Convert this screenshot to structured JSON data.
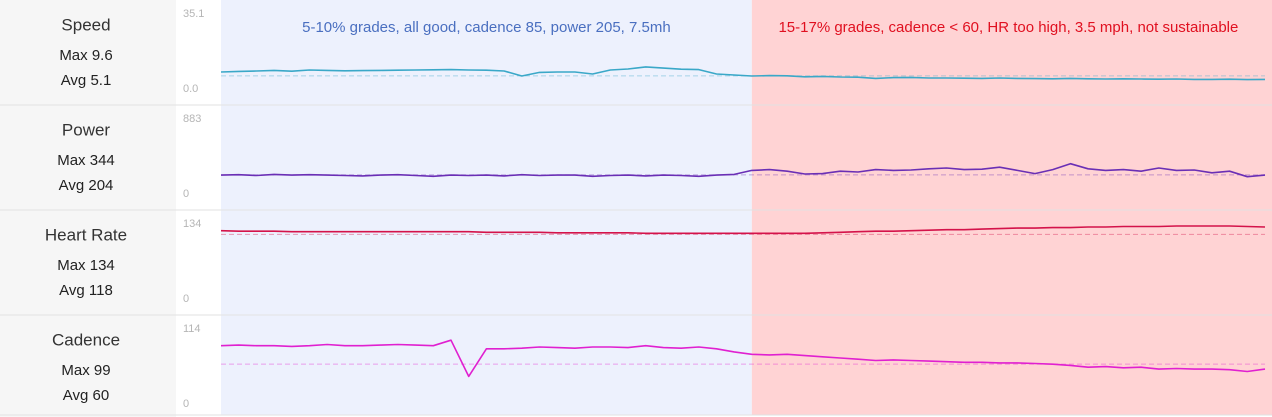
{
  "chart_data": [
    {
      "type": "line",
      "title": "Speed",
      "stats": [
        {
          "label": "Max",
          "value": 9.6
        },
        {
          "label": "Avg",
          "value": 5.1
        }
      ],
      "ylim": [
        0,
        35.1
      ],
      "yticks": [
        {
          "value": 0,
          "label": "0.0"
        },
        35.1
      ],
      "color": "#3aa8c8",
      "values": [
        7,
        7.3,
        7.5,
        7.8,
        7.4,
        8,
        7.8,
        7.6,
        7.7,
        7.8,
        7.9,
        8,
        8.1,
        8.2,
        8,
        7.9,
        7.5,
        5,
        6.8,
        7,
        7,
        6,
        8,
        8.5,
        9.6,
        9,
        8.4,
        8.2,
        6,
        5.5,
        5,
        5.2,
        5.1,
        4.6,
        4.8,
        4.5,
        4.4,
        3.8,
        4.2,
        4.3,
        4,
        4,
        3.9,
        3.8,
        4,
        3.8,
        3.7,
        3.6,
        3.8,
        3.6,
        3.5,
        3.6,
        3.5,
        3.4,
        3.5,
        3.3,
        3.3,
        3.4,
        3.2,
        3.3
      ]
    },
    {
      "type": "line",
      "title": "Power",
      "stats": [
        {
          "label": "Max",
          "value": 344
        },
        {
          "label": "Avg",
          "value": 204
        }
      ],
      "ylim": [
        0,
        883
      ],
      "yticks": [
        0,
        883
      ],
      "color": "#6a2fb5",
      "values": [
        200,
        205,
        195,
        210,
        200,
        205,
        200,
        195,
        190,
        200,
        205,
        195,
        185,
        200,
        195,
        200,
        190,
        205,
        195,
        200,
        200,
        185,
        195,
        200,
        190,
        200,
        195,
        185,
        200,
        210,
        260,
        270,
        250,
        215,
        220,
        250,
        240,
        270,
        260,
        265,
        280,
        290,
        270,
        275,
        300,
        260,
        220,
        270,
        344,
        280,
        260,
        270,
        250,
        290,
        260,
        265,
        230,
        250,
        180,
        200
      ]
    },
    {
      "type": "line",
      "title": "Heart Rate",
      "stats": [
        {
          "label": "Max",
          "value": 134
        },
        {
          "label": "Avg",
          "value": 118
        }
      ],
      "ylim": [
        0,
        134
      ],
      "yticks": [
        0,
        134
      ],
      "color": "#d4134a",
      "values": [
        125,
        124,
        124,
        124,
        123,
        123,
        123,
        123,
        123,
        123,
        123,
        123,
        123,
        123,
        123,
        122,
        122,
        122,
        122,
        121,
        121,
        121,
        121,
        121,
        120,
        120,
        120,
        120,
        120,
        120,
        120,
        120,
        120,
        120,
        121,
        122,
        123,
        124,
        124,
        125,
        126,
        127,
        127,
        128,
        129,
        130,
        130,
        131,
        131,
        132,
        132,
        133,
        133,
        133,
        134,
        134,
        134,
        134,
        133,
        132
      ]
    },
    {
      "type": "line",
      "title": "Cadence",
      "stats": [
        {
          "label": "Max",
          "value": 99
        },
        {
          "label": "Avg",
          "value": 60
        }
      ],
      "ylim": [
        0,
        114
      ],
      "yticks": [
        0,
        114
      ],
      "color": "#e020d0",
      "values": [
        90,
        91,
        90,
        90,
        89,
        90,
        92,
        90,
        90,
        91,
        92,
        91,
        90,
        99,
        40,
        85,
        85,
        86,
        88,
        87,
        86,
        88,
        88,
        87,
        90,
        87,
        86,
        88,
        85,
        80,
        76,
        75,
        76,
        74,
        72,
        70,
        68,
        66,
        67,
        66,
        65,
        64,
        63,
        63,
        62,
        62,
        61,
        60,
        58,
        55,
        56,
        54,
        55,
        52,
        53,
        52,
        52,
        51,
        48,
        52
      ]
    }
  ],
  "annotations": [
    {
      "text": "5-10% grades, all good, cadence 85, power 205, 7.5mh",
      "color": "#4a6fc0",
      "fill": "#edf1fd",
      "x_start": 0,
      "x_end": 30
    },
    {
      "text": "15-17% grades, cadence < 60, HR too high, 3.5 mph, not sustainable",
      "color": "#e01020",
      "fill": "#ffd3d4",
      "x_start": 30,
      "x_end": 59
    }
  ]
}
